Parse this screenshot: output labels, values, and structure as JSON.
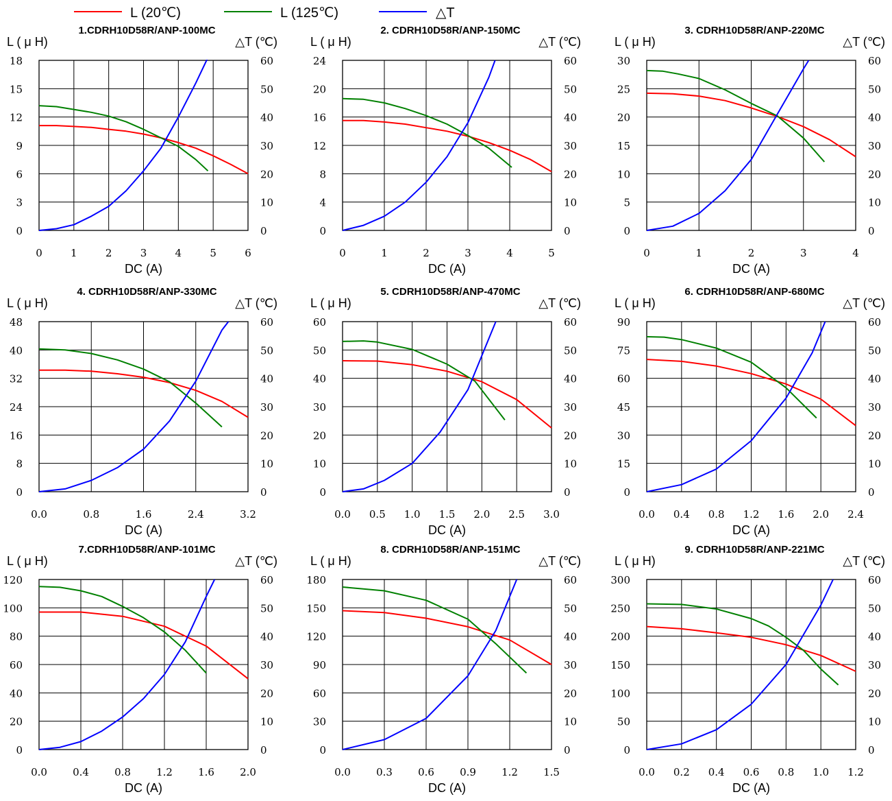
{
  "legend": [
    {
      "label": "L (20℃)",
      "color": "#ff0000"
    },
    {
      "label": "L (125℃)",
      "color": "#008000"
    },
    {
      "label": "△T",
      "color": "#0000ff"
    }
  ],
  "chart_data": [
    {
      "type": "line",
      "title": "1.CDRH10D58R/ANP-100MC",
      "xlabel": "DC (A)",
      "ylabel": "L (μH)",
      "y2label": "△T (℃)",
      "xlim": [
        0,
        6
      ],
      "ylim": [
        0,
        18
      ],
      "y2lim": [
        0,
        60
      ],
      "xticks": [
        "0",
        "1",
        "2",
        "3",
        "4",
        "5",
        "6"
      ],
      "yticks": [
        "0",
        "3",
        "6",
        "9",
        "12",
        "15",
        "18"
      ],
      "y2ticks": [
        "0",
        "10",
        "20",
        "30",
        "40",
        "50",
        "60"
      ],
      "grid": true,
      "series": [
        {
          "name": "L (20℃)",
          "axis": "left",
          "color": "#ff0000",
          "x": [
            0,
            0.5,
            1,
            1.5,
            2,
            2.5,
            3,
            3.5,
            4,
            4.5,
            5,
            5.5,
            6
          ],
          "y": [
            11.1,
            11.1,
            11,
            10.9,
            10.7,
            10.5,
            10.2,
            9.8,
            9.3,
            8.7,
            7.9,
            7.0,
            6.0
          ]
        },
        {
          "name": "L (125℃)",
          "axis": "left",
          "color": "#008000",
          "x": [
            0,
            0.5,
            1,
            1.5,
            2,
            2.5,
            3,
            3.5,
            4,
            4.5,
            4.85
          ],
          "y": [
            13.2,
            13.1,
            12.8,
            12.5,
            12.1,
            11.5,
            10.7,
            9.8,
            8.9,
            7.5,
            6.3
          ]
        },
        {
          "name": "△T",
          "axis": "right",
          "color": "#0000ff",
          "x": [
            0,
            0.5,
            1,
            1.5,
            2,
            2.5,
            3,
            3.5,
            4,
            4.5,
            4.85
          ],
          "y": [
            0,
            0.6,
            2,
            5,
            8.5,
            14,
            21,
            29,
            40,
            52,
            61
          ]
        }
      ]
    },
    {
      "type": "line",
      "title": "2. CDRH10D58R/ANP-150MC",
      "xlabel": "DC (A)",
      "ylabel": "L (μH)",
      "y2label": "△T (℃)",
      "xlim": [
        0,
        5
      ],
      "ylim": [
        0,
        24
      ],
      "y2lim": [
        0,
        60
      ],
      "xticks": [
        "0",
        "1",
        "2",
        "3",
        "4",
        "5"
      ],
      "yticks": [
        "0",
        "4",
        "8",
        "12",
        "16",
        "20",
        "24"
      ],
      "y2ticks": [
        "0",
        "10",
        "20",
        "30",
        "40",
        "50",
        "60"
      ],
      "grid": true,
      "series": [
        {
          "name": "L (20℃)",
          "axis": "left",
          "color": "#ff0000",
          "x": [
            0,
            0.5,
            1,
            1.5,
            2,
            2.5,
            3,
            3.5,
            4,
            4.5,
            5
          ],
          "y": [
            15.5,
            15.5,
            15.3,
            15,
            14.5,
            14,
            13.3,
            12.4,
            11.3,
            10,
            8.3
          ]
        },
        {
          "name": "L (125℃)",
          "axis": "left",
          "color": "#008000",
          "x": [
            0,
            0.5,
            1,
            1.5,
            2,
            2.5,
            3,
            3.5,
            4.05
          ],
          "y": [
            18.6,
            18.5,
            18,
            17.2,
            16.2,
            15,
            13.4,
            11.6,
            8.9
          ]
        },
        {
          "name": "△T",
          "axis": "right",
          "color": "#0000ff",
          "x": [
            0,
            0.5,
            1,
            1.5,
            2,
            2.5,
            3,
            3.5,
            3.65
          ],
          "y": [
            0,
            1.8,
            5,
            10,
            17,
            26,
            38,
            54,
            60
          ]
        }
      ]
    },
    {
      "type": "line",
      "title": "3. CDRH10D58R/ANP-220MC",
      "xlabel": "DC (A)",
      "ylabel": "L (μH)",
      "y2label": "△T (℃)",
      "xlim": [
        0,
        4
      ],
      "ylim": [
        0,
        30
      ],
      "y2lim": [
        0,
        60
      ],
      "xticks": [
        "0",
        "1",
        "2",
        "3",
        "4"
      ],
      "yticks": [
        "0",
        "5",
        "10",
        "15",
        "20",
        "25",
        "30"
      ],
      "y2ticks": [
        "0",
        "10",
        "20",
        "30",
        "40",
        "50",
        "60"
      ],
      "grid": true,
      "series": [
        {
          "name": "L (20℃)",
          "axis": "left",
          "color": "#ff0000",
          "x": [
            0,
            0.5,
            1,
            1.5,
            2,
            2.5,
            3,
            3.5,
            4
          ],
          "y": [
            24.2,
            24.1,
            23.7,
            22.9,
            21.6,
            20.1,
            18.3,
            16,
            13
          ]
        },
        {
          "name": "L (125℃)",
          "axis": "left",
          "color": "#008000",
          "x": [
            0,
            0.3,
            0.6,
            1,
            1.5,
            2,
            2.5,
            3,
            3.4
          ],
          "y": [
            28.2,
            28.1,
            27.6,
            26.8,
            24.8,
            22.4,
            20.2,
            16.3,
            12.1
          ]
        },
        {
          "name": "△T",
          "axis": "right",
          "color": "#0000ff",
          "x": [
            0,
            0.5,
            1,
            1.5,
            2,
            2.5,
            3,
            3.1
          ],
          "y": [
            0,
            1.5,
            6,
            14,
            25,
            41,
            57,
            60
          ]
        }
      ]
    },
    {
      "type": "line",
      "title": "4. CDRH10D58R/ANP-330MC",
      "xlabel": "DC (A)",
      "ylabel": "L (μH)",
      "y2label": "△T (℃)",
      "xlim": [
        0,
        3.2
      ],
      "ylim": [
        0,
        48
      ],
      "y2lim": [
        0,
        60
      ],
      "xticks": [
        "0.0",
        "0.8",
        "1.6",
        "2.4",
        "3.2"
      ],
      "yticks": [
        "0",
        "8",
        "16",
        "24",
        "32",
        "40",
        "48"
      ],
      "y2ticks": [
        "0",
        "10",
        "20",
        "30",
        "40",
        "50",
        "60"
      ],
      "grid": true,
      "series": [
        {
          "name": "L (20℃)",
          "axis": "left",
          "color": "#ff0000",
          "x": [
            0,
            0.4,
            0.8,
            1.2,
            1.6,
            2.0,
            2.4,
            2.8,
            3.2
          ],
          "y": [
            34.3,
            34.3,
            34,
            33.3,
            32.3,
            30.8,
            28.6,
            25.5,
            21
          ]
        },
        {
          "name": "L (125℃)",
          "axis": "left",
          "color": "#008000",
          "x": [
            0,
            0.4,
            0.8,
            1.2,
            1.6,
            2.0,
            2.4,
            2.8
          ],
          "y": [
            40.3,
            40,
            39,
            37.2,
            34.6,
            31,
            25,
            18.3
          ]
        },
        {
          "name": "△T",
          "axis": "right",
          "color": "#0000ff",
          "x": [
            0,
            0.4,
            0.8,
            1.2,
            1.6,
            2.0,
            2.4,
            2.8,
            2.9
          ],
          "y": [
            0,
            1,
            4,
            8.5,
            15,
            25,
            39,
            57,
            60
          ]
        }
      ]
    },
    {
      "type": "line",
      "title": "5. CDRH10D58R/ANP-470MC",
      "xlabel": "DC (A)",
      "ylabel": "L (μH)",
      "y2label": "△T (℃)",
      "xlim": [
        0,
        3.0
      ],
      "ylim": [
        0,
        60
      ],
      "y2lim": [
        0,
        60
      ],
      "xticks": [
        "0.0",
        "0.5",
        "1.0",
        "1.5",
        "2.0",
        "2.5",
        "3.0"
      ],
      "yticks": [
        "0",
        "10",
        "20",
        "30",
        "40",
        "50",
        "60"
      ],
      "y2ticks": [
        "0",
        "10",
        "20",
        "30",
        "40",
        "50",
        "60"
      ],
      "grid": true,
      "series": [
        {
          "name": "L (20℃)",
          "axis": "left",
          "color": "#ff0000",
          "x": [
            0,
            0.5,
            1,
            1.5,
            2,
            2.5,
            3
          ],
          "y": [
            46.2,
            46.1,
            44.8,
            42.5,
            38.8,
            32.5,
            22.5
          ]
        },
        {
          "name": "L (125℃)",
          "axis": "left",
          "color": "#008000",
          "x": [
            0,
            0.3,
            0.5,
            1,
            1.5,
            1.9,
            2.33
          ],
          "y": [
            53,
            53.2,
            52.8,
            50.2,
            45,
            39,
            25.3
          ]
        },
        {
          "name": "△T",
          "axis": "right",
          "color": "#0000ff",
          "x": [
            0,
            0.3,
            0.6,
            1,
            1.4,
            1.8,
            2.0,
            2.2
          ],
          "y": [
            0,
            1,
            4,
            10,
            21,
            36,
            48,
            60
          ]
        }
      ]
    },
    {
      "type": "line",
      "title": "6. CDRH10D58R/ANP-680MC",
      "xlabel": "DC (A)",
      "ylabel": "L (μH)",
      "y2label": "△T (℃)",
      "xlim": [
        0,
        2.4
      ],
      "ylim": [
        0,
        90
      ],
      "y2lim": [
        0,
        60
      ],
      "xticks": [
        "0.0",
        "0.4",
        "0.8",
        "1.2",
        "1.6",
        "2.0",
        "2.4"
      ],
      "yticks": [
        "0",
        "15",
        "30",
        "45",
        "60",
        "75",
        "90"
      ],
      "y2ticks": [
        "0",
        "10",
        "20",
        "30",
        "40",
        "50",
        "60"
      ],
      "grid": true,
      "series": [
        {
          "name": "L (20℃)",
          "axis": "left",
          "color": "#ff0000",
          "x": [
            0,
            0.4,
            0.8,
            1.2,
            1.6,
            2.0,
            2.4
          ],
          "y": [
            70,
            69,
            66.5,
            62.5,
            57,
            49,
            35
          ]
        },
        {
          "name": "L (125℃)",
          "axis": "left",
          "color": "#008000",
          "x": [
            0,
            0.2,
            0.4,
            0.8,
            1.2,
            1.6,
            1.95
          ],
          "y": [
            82,
            81.8,
            80.5,
            76,
            68.5,
            55,
            39
          ]
        },
        {
          "name": "△T",
          "axis": "right",
          "color": "#0000ff",
          "x": [
            0,
            0.4,
            0.8,
            1.2,
            1.6,
            1.9,
            2.05
          ],
          "y": [
            0,
            2.5,
            8,
            18,
            33,
            49,
            60
          ]
        }
      ]
    },
    {
      "type": "line",
      "title": "7.CDRH10D58R/ANP-101MC",
      "xlabel": "DC (A)",
      "ylabel": "L (μH)",
      "y2label": "△T (℃)",
      "xlim": [
        0,
        2.0
      ],
      "ylim": [
        0,
        120
      ],
      "y2lim": [
        0,
        60
      ],
      "xticks": [
        "0.0",
        "0.4",
        "0.8",
        "1.2",
        "1.6",
        "2.0"
      ],
      "yticks": [
        "0",
        "20",
        "40",
        "60",
        "80",
        "100",
        "120"
      ],
      "y2ticks": [
        "0",
        "10",
        "20",
        "30",
        "40",
        "50",
        "60"
      ],
      "grid": true,
      "series": [
        {
          "name": "L (20℃)",
          "axis": "left",
          "color": "#ff0000",
          "x": [
            0,
            0.4,
            0.8,
            1.2,
            1.6,
            2.0
          ],
          "y": [
            97,
            97,
            94,
            87,
            73,
            50
          ]
        },
        {
          "name": "L (125℃)",
          "axis": "left",
          "color": "#008000",
          "x": [
            0,
            0.2,
            0.4,
            0.6,
            0.8,
            1.0,
            1.2,
            1.4,
            1.6
          ],
          "y": [
            115,
            114.5,
            112,
            108,
            101,
            93,
            83,
            70,
            54
          ]
        },
        {
          "name": "△T",
          "axis": "right",
          "color": "#0000ff",
          "x": [
            0,
            0.2,
            0.4,
            0.6,
            0.8,
            1.0,
            1.2,
            1.4,
            1.6,
            1.68
          ],
          "y": [
            0,
            0.8,
            2.8,
            6.5,
            11.5,
            18,
            26.5,
            38,
            54,
            60
          ]
        }
      ]
    },
    {
      "type": "line",
      "title": "8. CDRH10D58R/ANP-151MC",
      "xlabel": "DC (A)",
      "ylabel": "L (μH)",
      "y2label": "△T (℃)",
      "xlim": [
        0,
        1.5
      ],
      "ylim": [
        0,
        180
      ],
      "y2lim": [
        0,
        60
      ],
      "xticks": [
        "0.0",
        "0.3",
        "0.6",
        "0.9",
        "1.2",
        "1.5"
      ],
      "yticks": [
        "0",
        "30",
        "60",
        "90",
        "120",
        "150",
        "180"
      ],
      "y2ticks": [
        "0",
        "10",
        "20",
        "30",
        "40",
        "50",
        "60"
      ],
      "grid": true,
      "series": [
        {
          "name": "L (20℃)",
          "axis": "left",
          "color": "#ff0000",
          "x": [
            0,
            0.3,
            0.6,
            0.9,
            1.2,
            1.5
          ],
          "y": [
            147,
            145,
            139,
            130,
            116,
            90
          ]
        },
        {
          "name": "L (125℃)",
          "axis": "left",
          "color": "#008000",
          "x": [
            0,
            0.3,
            0.6,
            0.9,
            1.1,
            1.32
          ],
          "y": [
            172,
            168,
            158,
            138,
            112,
            81
          ]
        },
        {
          "name": "△T",
          "axis": "right",
          "color": "#0000ff",
          "x": [
            0,
            0.3,
            0.6,
            0.9,
            1.1,
            1.25
          ],
          "y": [
            0,
            3.5,
            11,
            26,
            42,
            60
          ]
        }
      ]
    },
    {
      "type": "line",
      "title": "9. CDRH10D58R/ANP-221MC",
      "xlabel": "DC (A)",
      "ylabel": "L (μH)",
      "y2label": "△T (℃)",
      "xlim": [
        0,
        1.2
      ],
      "ylim": [
        0,
        300
      ],
      "y2lim": [
        0,
        60
      ],
      "xticks": [
        "0.0",
        "0.2",
        "0.4",
        "0.6",
        "0.8",
        "1.0",
        "1.2"
      ],
      "yticks": [
        "0",
        "50",
        "100",
        "150",
        "200",
        "250",
        "300"
      ],
      "y2ticks": [
        "0",
        "10",
        "20",
        "30",
        "40",
        "50",
        "60"
      ],
      "grid": true,
      "series": [
        {
          "name": "L (20℃)",
          "axis": "left",
          "color": "#ff0000",
          "x": [
            0,
            0.2,
            0.4,
            0.6,
            0.8,
            1.0,
            1.2
          ],
          "y": [
            217,
            213,
            206,
            198,
            185,
            166,
            138
          ]
        },
        {
          "name": "L (125℃)",
          "axis": "left",
          "color": "#008000",
          "x": [
            0,
            0.2,
            0.4,
            0.6,
            0.7,
            0.8,
            0.9,
            1.0,
            1.1
          ],
          "y": [
            257,
            256,
            248,
            231,
            218,
            198,
            175,
            142,
            114
          ]
        },
        {
          "name": "△T",
          "axis": "right",
          "color": "#0000ff",
          "x": [
            0,
            0.2,
            0.4,
            0.6,
            0.8,
            1.0,
            1.07
          ],
          "y": [
            0,
            2,
            7,
            16,
            30,
            51,
            60
          ]
        }
      ]
    }
  ]
}
